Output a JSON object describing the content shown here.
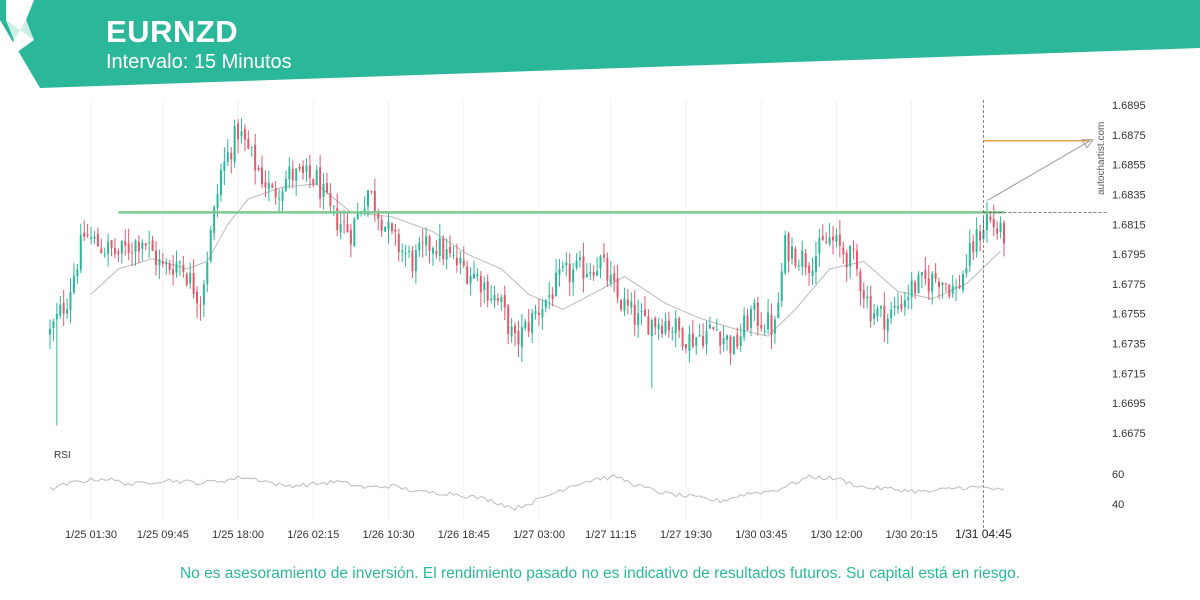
{
  "header": {
    "symbol": "EURNZD",
    "interval": "Intervalo: 15 Minutos",
    "background_color": "#2bb89a",
    "logo_icon": "autochartist-s-logo-icon"
  },
  "watermark": "autochartist.com",
  "disclaimer": "No es asesoramiento de inversión. El rendimiento pasado no es indicativo de resultados futuros. Su capital está en riesgo.",
  "chart_data": {
    "type": "candlestick",
    "price_axis": {
      "ticks": [
        "1.6895",
        "1.6875",
        "1.6855",
        "1.6835",
        "1.6815",
        "1.6795",
        "1.6775",
        "1.6755",
        "1.6735",
        "1.6715",
        "1.6695",
        "1.6675"
      ],
      "range": [
        1.666,
        1.6905
      ]
    },
    "time_axis": {
      "ticks": [
        "1/25 01:30",
        "1/25 09:45",
        "1/25 18:00",
        "1/26 02:15",
        "1/26 10:30",
        "1/26 18:45",
        "1/27 03:00",
        "1/27 11:15",
        "1/27 19:30",
        "1/30 03:45",
        "1/30 12:00",
        "1/30 20:15"
      ],
      "current_time": "1/31 04:45"
    },
    "up_color": "#2bb89a",
    "down_color": "#e05a6b",
    "resistance_level": 1.6823,
    "resistance_color": "#7cc98f",
    "target_level": 1.6871,
    "target_color": "#e8a24a",
    "key_points": [
      {
        "t": 0,
        "p": 1.6742
      },
      {
        "t": 5,
        "p": 1.6765
      },
      {
        "t": 10,
        "p": 1.6808
      },
      {
        "t": 15,
        "p": 1.68
      },
      {
        "t": 20,
        "p": 1.6795
      },
      {
        "t": 27,
        "p": 1.6806
      },
      {
        "t": 33,
        "p": 1.6785
      },
      {
        "t": 38,
        "p": 1.679
      },
      {
        "t": 44,
        "p": 1.6765
      },
      {
        "t": 50,
        "p": 1.685
      },
      {
        "t": 55,
        "p": 1.6878
      },
      {
        "t": 60,
        "p": 1.6855
      },
      {
        "t": 65,
        "p": 1.6835
      },
      {
        "t": 70,
        "p": 1.6848
      },
      {
        "t": 78,
        "p": 1.6845
      },
      {
        "t": 82,
        "p": 1.6822
      },
      {
        "t": 88,
        "p": 1.681
      },
      {
        "t": 93,
        "p": 1.6838
      },
      {
        "t": 100,
        "p": 1.6805
      },
      {
        "t": 106,
        "p": 1.679
      },
      {
        "t": 112,
        "p": 1.6803
      },
      {
        "t": 118,
        "p": 1.679
      },
      {
        "t": 125,
        "p": 1.678
      },
      {
        "t": 132,
        "p": 1.676
      },
      {
        "t": 136,
        "p": 1.6735
      },
      {
        "t": 142,
        "p": 1.6755
      },
      {
        "t": 150,
        "p": 1.678
      },
      {
        "t": 156,
        "p": 1.6785
      },
      {
        "t": 161,
        "p": 1.679
      },
      {
        "t": 166,
        "p": 1.6765
      },
      {
        "t": 172,
        "p": 1.675
      },
      {
        "t": 180,
        "p": 1.675
      },
      {
        "t": 187,
        "p": 1.6738
      },
      {
        "t": 195,
        "p": 1.6745
      },
      {
        "t": 200,
        "p": 1.6732
      },
      {
        "t": 205,
        "p": 1.6755
      },
      {
        "t": 212,
        "p": 1.6745
      },
      {
        "t": 215,
        "p": 1.68
      },
      {
        "t": 222,
        "p": 1.679
      },
      {
        "t": 228,
        "p": 1.6805
      },
      {
        "t": 235,
        "p": 1.679
      },
      {
        "t": 240,
        "p": 1.6758
      },
      {
        "t": 245,
        "p": 1.6752
      },
      {
        "t": 252,
        "p": 1.6772
      },
      {
        "t": 260,
        "p": 1.678
      },
      {
        "t": 265,
        "p": 1.677
      },
      {
        "t": 270,
        "p": 1.68
      },
      {
        "t": 274,
        "p": 1.682
      },
      {
        "t": 278,
        "p": 1.6808
      }
    ],
    "moving_average": {
      "color": "#bbbbbb",
      "points": [
        {
          "t": 12,
          "p": 1.6768
        },
        {
          "t": 20,
          "p": 1.6785
        },
        {
          "t": 30,
          "p": 1.6792
        },
        {
          "t": 40,
          "p": 1.6785
        },
        {
          "t": 46,
          "p": 1.679
        },
        {
          "t": 52,
          "p": 1.6815
        },
        {
          "t": 58,
          "p": 1.6832
        },
        {
          "t": 68,
          "p": 1.684
        },
        {
          "t": 78,
          "p": 1.6842
        },
        {
          "t": 88,
          "p": 1.6823
        },
        {
          "t": 100,
          "p": 1.682
        },
        {
          "t": 112,
          "p": 1.681
        },
        {
          "t": 122,
          "p": 1.6795
        },
        {
          "t": 132,
          "p": 1.6785
        },
        {
          "t": 140,
          "p": 1.6768
        },
        {
          "t": 150,
          "p": 1.6758
        },
        {
          "t": 160,
          "p": 1.677
        },
        {
          "t": 168,
          "p": 1.678
        },
        {
          "t": 180,
          "p": 1.6762
        },
        {
          "t": 190,
          "p": 1.6752
        },
        {
          "t": 200,
          "p": 1.6745
        },
        {
          "t": 210,
          "p": 1.674
        },
        {
          "t": 218,
          "p": 1.6758
        },
        {
          "t": 228,
          "p": 1.6785
        },
        {
          "t": 238,
          "p": 1.679
        },
        {
          "t": 248,
          "p": 1.677
        },
        {
          "t": 258,
          "p": 1.6765
        },
        {
          "t": 268,
          "p": 1.6775
        },
        {
          "t": 278,
          "p": 1.6797
        }
      ]
    },
    "rsi": {
      "label": "RSI",
      "ticks": [
        "60",
        "40"
      ],
      "range": [
        33,
        67
      ],
      "color": "#bbbbbb",
      "key_points": [
        {
          "t": 0,
          "p": 50
        },
        {
          "t": 8,
          "p": 55
        },
        {
          "t": 16,
          "p": 57
        },
        {
          "t": 24,
          "p": 53
        },
        {
          "t": 34,
          "p": 56
        },
        {
          "t": 44,
          "p": 54
        },
        {
          "t": 52,
          "p": 56
        },
        {
          "t": 56,
          "p": 58
        },
        {
          "t": 62,
          "p": 56
        },
        {
          "t": 68,
          "p": 52
        },
        {
          "t": 76,
          "p": 53
        },
        {
          "t": 84,
          "p": 55
        },
        {
          "t": 92,
          "p": 51
        },
        {
          "t": 100,
          "p": 52
        },
        {
          "t": 108,
          "p": 48
        },
        {
          "t": 118,
          "p": 47
        },
        {
          "t": 128,
          "p": 43
        },
        {
          "t": 136,
          "p": 37
        },
        {
          "t": 142,
          "p": 42
        },
        {
          "t": 152,
          "p": 52
        },
        {
          "t": 160,
          "p": 57
        },
        {
          "t": 166,
          "p": 58
        },
        {
          "t": 172,
          "p": 52
        },
        {
          "t": 180,
          "p": 47
        },
        {
          "t": 190,
          "p": 44
        },
        {
          "t": 196,
          "p": 42
        },
        {
          "t": 204,
          "p": 47
        },
        {
          "t": 212,
          "p": 49
        },
        {
          "t": 222,
          "p": 58
        },
        {
          "t": 230,
          "p": 57
        },
        {
          "t": 238,
          "p": 51
        },
        {
          "t": 246,
          "p": 50
        },
        {
          "t": 256,
          "p": 48
        },
        {
          "t": 266,
          "p": 51
        },
        {
          "t": 274,
          "p": 51
        },
        {
          "t": 278,
          "p": 49
        }
      ]
    },
    "time_index_ticks": [
      12,
      33,
      55,
      77,
      99,
      121,
      143,
      164,
      186,
      208,
      230,
      252
    ],
    "current_time_index": 273
  }
}
